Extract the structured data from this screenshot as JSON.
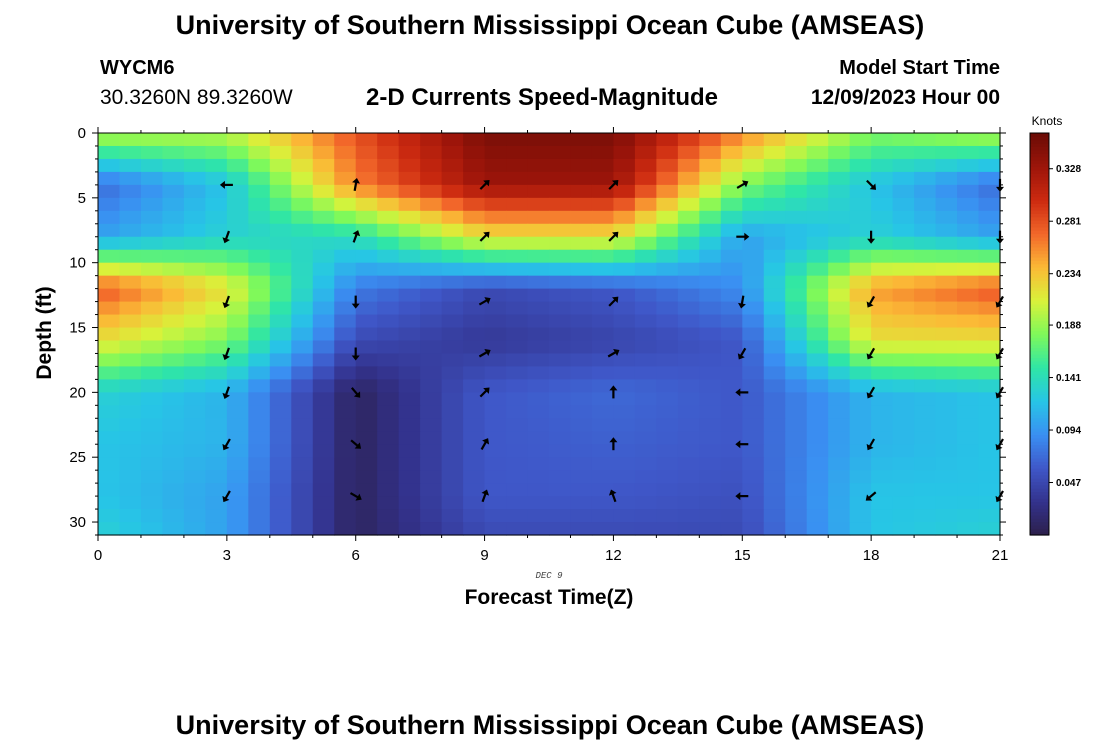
{
  "header": {
    "title": "University of Southern Mississippi Ocean Cube (AMSEAS)",
    "station_id": "WYCM6",
    "station_coords": "30.3260N  89.3260W",
    "subtitle": "2-D Currents Speed-Magnitude",
    "model_start_label": "Model Start Time",
    "model_start_value": "12/09/2023 Hour 00"
  },
  "footer": {
    "title": "University of Southern Mississippi Ocean Cube (AMSEAS)"
  },
  "chart_data": {
    "type": "heatmap",
    "title": "2-D Currents Speed-Magnitude",
    "xlabel": "Forecast Time(Z)",
    "ylabel": "Depth (ft)",
    "date_label": "DEC 9",
    "xlim": [
      0,
      21
    ],
    "ylim": [
      31,
      0
    ],
    "x_ticks": [
      0,
      3,
      6,
      9,
      12,
      15,
      18,
      21
    ],
    "y_ticks": [
      0,
      5,
      10,
      15,
      20,
      25,
      30
    ],
    "colorbar": {
      "label": "Knots",
      "range": [
        0.0,
        0.36
      ],
      "ticks": [
        0.047,
        0.094,
        0.141,
        0.188,
        0.234,
        0.281,
        0.328
      ]
    },
    "colormap": [
      "#2c1f4a",
      "#33328c",
      "#3f57c8",
      "#3a8ff2",
      "#27c5e6",
      "#2fe6a6",
      "#7ff95a",
      "#d9f23a",
      "#fbb936",
      "#f2672a",
      "#cc2a10",
      "#9d150a",
      "#6a0c06"
    ],
    "time_hours": [
      0,
      3,
      6,
      9,
      12,
      15,
      18,
      21
    ],
    "depths_ft": [
      0,
      4,
      8,
      12,
      16,
      20,
      24,
      28,
      31
    ],
    "speed_knots": [
      [
        0.2,
        0.2,
        0.28,
        0.35,
        0.35,
        0.26,
        0.18,
        0.2
      ],
      [
        0.07,
        0.12,
        0.26,
        0.33,
        0.33,
        0.18,
        0.12,
        0.07
      ],
      [
        0.1,
        0.13,
        0.14,
        0.22,
        0.22,
        0.1,
        0.13,
        0.1
      ],
      [
        0.28,
        0.22,
        0.08,
        0.05,
        0.06,
        0.09,
        0.25,
        0.28
      ],
      [
        0.22,
        0.18,
        0.05,
        0.035,
        0.045,
        0.06,
        0.22,
        0.22
      ],
      [
        0.13,
        0.11,
        0.01,
        0.06,
        0.07,
        0.06,
        0.11,
        0.12
      ],
      [
        0.12,
        0.11,
        0.01,
        0.06,
        0.065,
        0.06,
        0.11,
        0.12
      ],
      [
        0.12,
        0.1,
        0.01,
        0.06,
        0.06,
        0.055,
        0.12,
        0.12
      ],
      [
        0.13,
        0.1,
        0.01,
        0.05,
        0.05,
        0.05,
        0.12,
        0.13
      ]
    ],
    "arrows": {
      "times": [
        3,
        6,
        9,
        12,
        15,
        18,
        21
      ],
      "depths": [
        4,
        8,
        13,
        17,
        20,
        24,
        28
      ],
      "directions_deg": [
        [
          270,
          10,
          45,
          45,
          60,
          135,
          180
        ],
        [
          200,
          20,
          45,
          45,
          90,
          180,
          180
        ],
        [
          200,
          180,
          60,
          45,
          190,
          210,
          210
        ],
        [
          200,
          180,
          60,
          60,
          210,
          210,
          210
        ],
        [
          200,
          140,
          45,
          0,
          270,
          210,
          210
        ],
        [
          210,
          130,
          30,
          0,
          270,
          210,
          210
        ],
        [
          210,
          120,
          20,
          340,
          270,
          230,
          210
        ]
      ]
    }
  }
}
